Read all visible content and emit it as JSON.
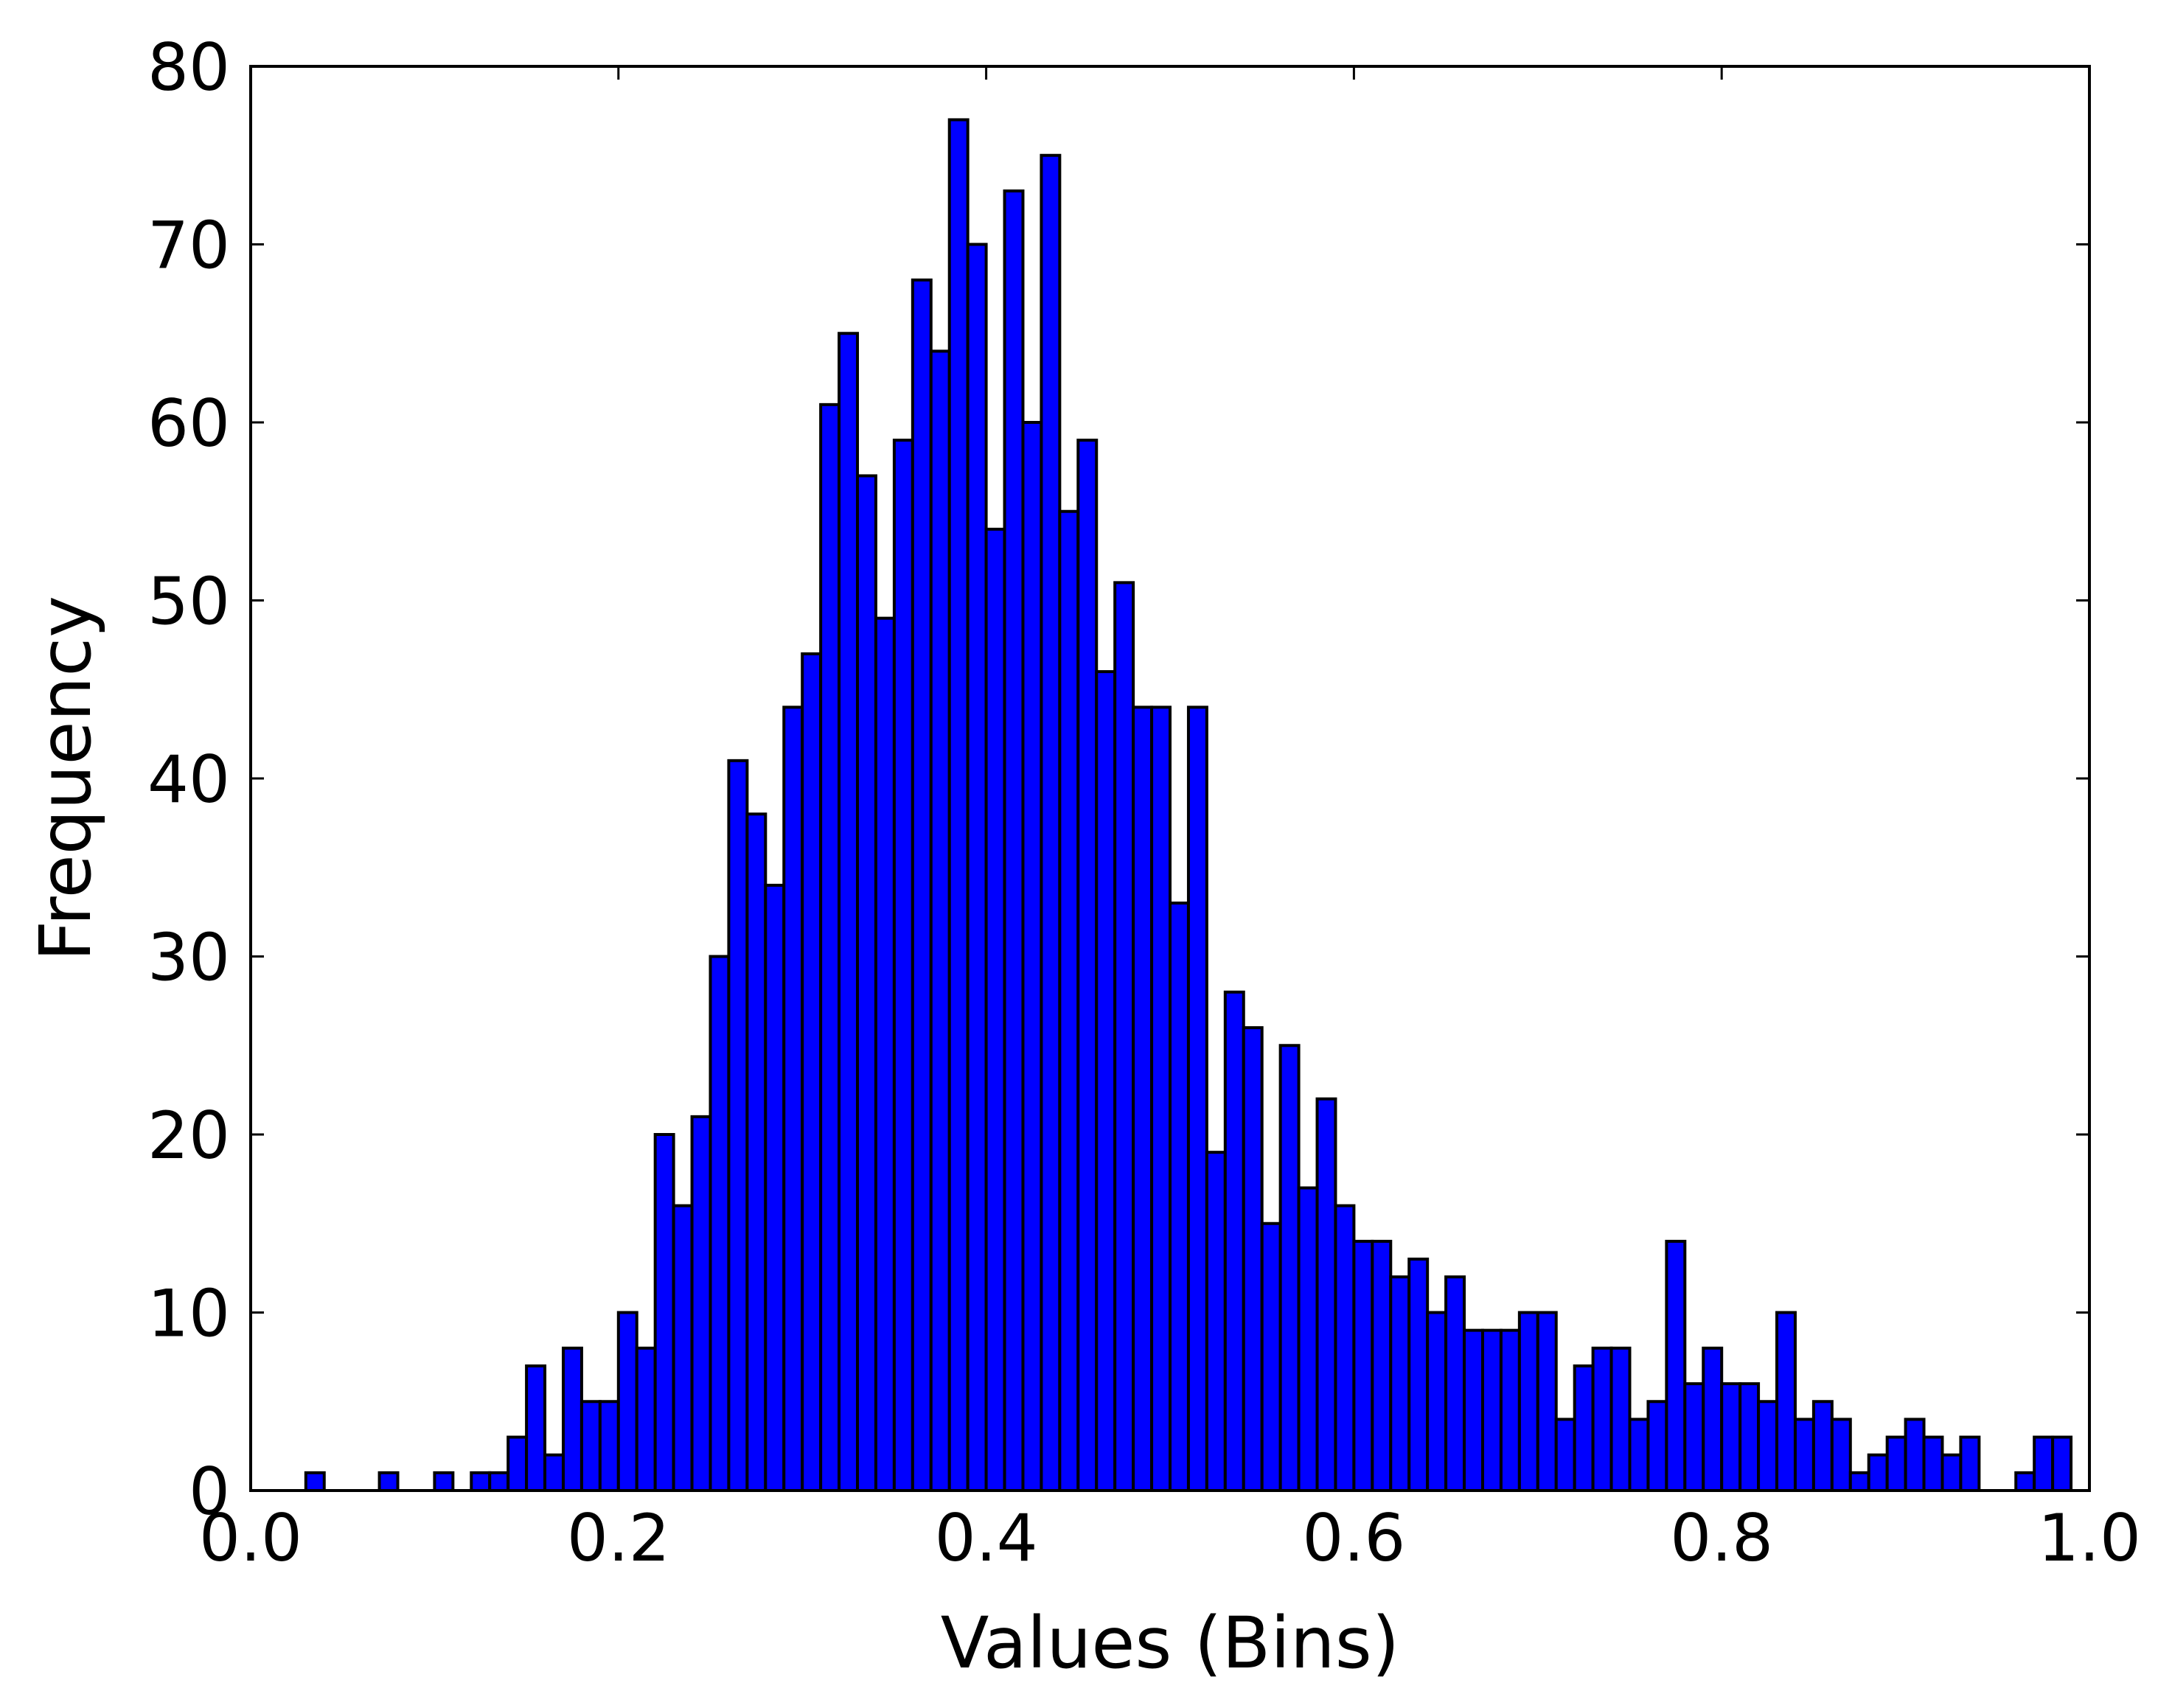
{
  "chart_data": {
    "type": "bar",
    "title": "",
    "xlabel": "Values (Bins)",
    "ylabel": "Frequency",
    "xlim": [
      0.0,
      1.0
    ],
    "ylim": [
      0,
      80
    ],
    "grid": false,
    "legend": "none",
    "bar_color": "#0000ff",
    "edge_color": "#000000",
    "x_ticks": [
      "0.0",
      "0.2",
      "0.4",
      "0.6",
      "0.8",
      "1.0"
    ],
    "y_ticks": [
      "0",
      "10",
      "20",
      "30",
      "40",
      "50",
      "60",
      "70",
      "80"
    ],
    "bin_start": 0.0,
    "bin_width": 0.01,
    "values": [
      0,
      0,
      0,
      1,
      0,
      0,
      0,
      1,
      0,
      0,
      1,
      0,
      1,
      1,
      3,
      7,
      2,
      8,
      5,
      5,
      10,
      8,
      20,
      16,
      21,
      30,
      41,
      38,
      34,
      44,
      47,
      61,
      65,
      57,
      49,
      59,
      68,
      64,
      77,
      70,
      54,
      73,
      60,
      75,
      55,
      59,
      46,
      51,
      44,
      44,
      33,
      44,
      19,
      28,
      26,
      15,
      25,
      17,
      22,
      16,
      14,
      14,
      12,
      13,
      10,
      12,
      9,
      9,
      9,
      10,
      10,
      4,
      7,
      8,
      8,
      4,
      5,
      14,
      6,
      8,
      6,
      6,
      5,
      10,
      4,
      5,
      4,
      1,
      2,
      3,
      4,
      3,
      2,
      3,
      0,
      0,
      1,
      3,
      3
    ]
  }
}
